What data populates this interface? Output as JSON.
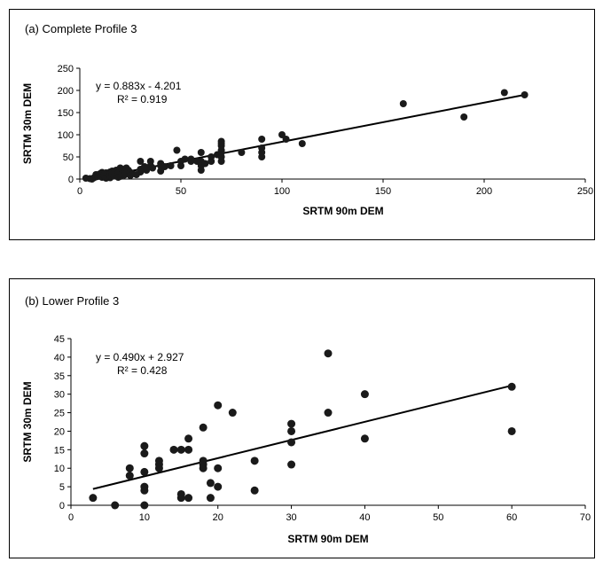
{
  "chart_data": [
    {
      "type": "scatter",
      "title": "(a) Complete Profile 3",
      "xlabel": "SRTM 90m DEM",
      "ylabel": "SRTM 30m DEM",
      "xlim": [
        0,
        250
      ],
      "ylim": [
        0,
        250
      ],
      "xticks": [
        0,
        50,
        100,
        150,
        200,
        250
      ],
      "yticks": [
        0,
        50,
        100,
        150,
        200,
        250
      ],
      "grid": false,
      "trendline": {
        "slope": 0.883,
        "intercept": -4.201,
        "x_start": 3,
        "x_end": 220
      },
      "equation": "y = 0.883x - 4.201",
      "r_squared": "R² = 0.919",
      "points": [
        [
          3,
          2
        ],
        [
          5,
          1
        ],
        [
          6,
          0
        ],
        [
          7,
          3
        ],
        [
          8,
          5
        ],
        [
          8,
          10
        ],
        [
          9,
          6
        ],
        [
          10,
          8
        ],
        [
          10,
          12
        ],
        [
          11,
          4
        ],
        [
          11,
          15
        ],
        [
          12,
          6
        ],
        [
          12,
          9
        ],
        [
          13,
          2
        ],
        [
          13,
          14
        ],
        [
          14,
          5
        ],
        [
          14,
          10
        ],
        [
          15,
          3
        ],
        [
          15,
          8
        ],
        [
          15,
          16
        ],
        [
          16,
          12
        ],
        [
          16,
          18
        ],
        [
          17,
          7
        ],
        [
          17,
          15
        ],
        [
          18,
          10
        ],
        [
          18,
          20
        ],
        [
          19,
          14
        ],
        [
          19,
          4
        ],
        [
          20,
          6
        ],
        [
          20,
          18
        ],
        [
          20,
          25
        ],
        [
          21,
          12
        ],
        [
          21,
          22
        ],
        [
          22,
          9
        ],
        [
          22,
          16
        ],
        [
          23,
          25
        ],
        [
          24,
          20
        ],
        [
          25,
          15
        ],
        [
          25,
          8
        ],
        [
          26,
          12
        ],
        [
          28,
          10
        ],
        [
          30,
          22
        ],
        [
          30,
          16
        ],
        [
          30,
          40
        ],
        [
          32,
          28
        ],
        [
          33,
          20
        ],
        [
          35,
          30
        ],
        [
          35,
          40
        ],
        [
          36,
          25
        ],
        [
          40,
          18
        ],
        [
          40,
          35
        ],
        [
          40,
          30
        ],
        [
          42,
          28
        ],
        [
          45,
          30
        ],
        [
          48,
          65
        ],
        [
          50,
          30
        ],
        [
          50,
          40
        ],
        [
          52,
          45
        ],
        [
          55,
          40
        ],
        [
          55,
          45
        ],
        [
          58,
          40
        ],
        [
          60,
          30
        ],
        [
          60,
          20
        ],
        [
          60,
          40
        ],
        [
          60,
          60
        ],
        [
          62,
          35
        ],
        [
          65,
          40
        ],
        [
          65,
          50
        ],
        [
          68,
          55
        ],
        [
          70,
          40
        ],
        [
          70,
          50
        ],
        [
          70,
          60
        ],
        [
          70,
          65
        ],
        [
          70,
          75
        ],
        [
          70,
          80
        ],
        [
          70,
          85
        ],
        [
          80,
          60
        ],
        [
          90,
          50
        ],
        [
          90,
          60
        ],
        [
          90,
          70
        ],
        [
          90,
          90
        ],
        [
          100,
          100
        ],
        [
          102,
          90
        ],
        [
          110,
          80
        ],
        [
          160,
          170
        ],
        [
          190,
          140
        ],
        [
          210,
          195
        ],
        [
          220,
          190
        ]
      ]
    },
    {
      "type": "scatter",
      "title": "(b)  Lower Profile 3",
      "xlabel": "SRTM 90m DEM",
      "ylabel": "SRTM 30m DEM",
      "xlim": [
        0,
        70
      ],
      "ylim": [
        0,
        45
      ],
      "xticks": [
        0,
        10,
        20,
        30,
        40,
        50,
        60,
        70
      ],
      "yticks": [
        0,
        5,
        10,
        15,
        20,
        25,
        30,
        35,
        40,
        45
      ],
      "grid": false,
      "trendline": {
        "slope": 0.49,
        "intercept": 2.927,
        "x_start": 3,
        "x_end": 60
      },
      "equation": "y = 0.490x + 2.927",
      "r_squared": "R² = 0.428",
      "points": [
        [
          3,
          2
        ],
        [
          6,
          0
        ],
        [
          8,
          8
        ],
        [
          8,
          10
        ],
        [
          10,
          0
        ],
        [
          10,
          4
        ],
        [
          10,
          5
        ],
        [
          10,
          9
        ],
        [
          10,
          14
        ],
        [
          10,
          16
        ],
        [
          12,
          10
        ],
        [
          12,
          11
        ],
        [
          12,
          12
        ],
        [
          14,
          15
        ],
        [
          15,
          2
        ],
        [
          15,
          3
        ],
        [
          15,
          15
        ],
        [
          16,
          2
        ],
        [
          16,
          15
        ],
        [
          16,
          18
        ],
        [
          18,
          10
        ],
        [
          18,
          11
        ],
        [
          18,
          12
        ],
        [
          18,
          21
        ],
        [
          19,
          2
        ],
        [
          19,
          6
        ],
        [
          20,
          5
        ],
        [
          20,
          10
        ],
        [
          20,
          27
        ],
        [
          22,
          25
        ],
        [
          25,
          4
        ],
        [
          25,
          12
        ],
        [
          30,
          11
        ],
        [
          30,
          17
        ],
        [
          30,
          20
        ],
        [
          30,
          22
        ],
        [
          35,
          25
        ],
        [
          35,
          41
        ],
        [
          40,
          18
        ],
        [
          40,
          30
        ],
        [
          60,
          20
        ],
        [
          60,
          32
        ]
      ]
    }
  ]
}
